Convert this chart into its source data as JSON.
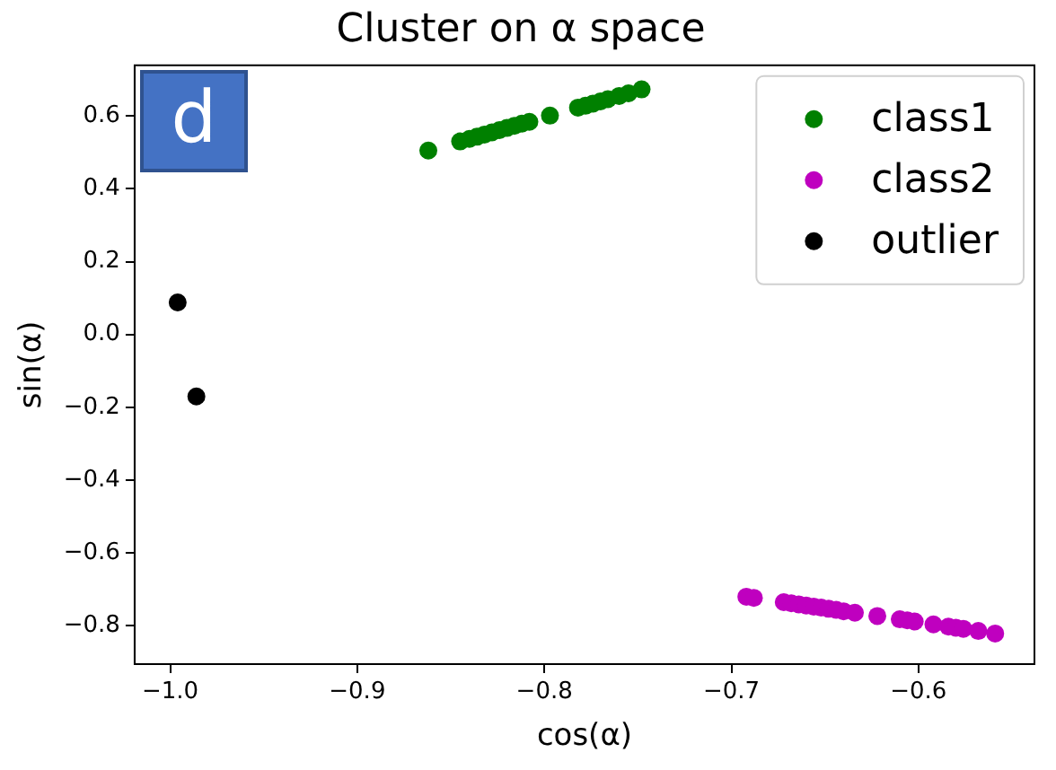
{
  "chart_data": {
    "type": "scatter",
    "title": "Cluster on α space",
    "xlabel": "cos(α)",
    "ylabel": "sin(α)",
    "annotations": [
      "d"
    ],
    "xlim": [
      -1.019,
      -0.538
    ],
    "ylim": [
      -0.905,
      0.739
    ],
    "xticks": [
      {
        "value": -1,
        "label": "−1.0"
      },
      {
        "value": -0.9,
        "label": "−0.9"
      },
      {
        "value": -0.8,
        "label": "−0.8"
      },
      {
        "value": -0.7,
        "label": "−0.7"
      },
      {
        "value": -0.6,
        "label": "−0.6"
      }
    ],
    "yticks": [
      {
        "value": -0.8,
        "label": "−0.8"
      },
      {
        "value": -0.6,
        "label": "−0.6"
      },
      {
        "value": -0.4,
        "label": "−0.4"
      },
      {
        "value": -0.2,
        "label": "−0.2"
      },
      {
        "value": 0,
        "label": "0.0"
      },
      0.2,
      0.4,
      0.6
    ],
    "grid": false,
    "legend": "top right",
    "marker": "circle",
    "series": [
      {
        "name": "class1",
        "color": "#008000",
        "x": [
          -0.862,
          -0.845,
          -0.84,
          -0.836,
          -0.832,
          -0.828,
          -0.824,
          -0.82,
          -0.816,
          -0.812,
          -0.808,
          -0.797,
          -0.782,
          -0.778,
          -0.774,
          -0.77,
          -0.766,
          -0.76,
          -0.755,
          -0.748
        ],
        "values": [
          0.505,
          0.53,
          0.537,
          0.543,
          0.549,
          0.555,
          0.561,
          0.567,
          0.573,
          0.579,
          0.584,
          0.601,
          0.623,
          0.628,
          0.634,
          0.64,
          0.646,
          0.655,
          0.662,
          0.673
        ]
      },
      {
        "name": "class2",
        "color": "#bf00bf",
        "x": [
          -0.692,
          -0.688,
          -0.672,
          -0.668,
          -0.664,
          -0.66,
          -0.656,
          -0.652,
          -0.648,
          -0.644,
          -0.64,
          -0.634,
          -0.622,
          -0.61,
          -0.606,
          -0.602,
          -0.592,
          -0.584,
          -0.58,
          -0.576,
          -0.568,
          -0.559
        ],
        "values": [
          -0.72,
          -0.723,
          -0.735,
          -0.738,
          -0.741,
          -0.744,
          -0.747,
          -0.75,
          -0.753,
          -0.756,
          -0.76,
          -0.764,
          -0.773,
          -0.782,
          -0.785,
          -0.788,
          -0.796,
          -0.802,
          -0.805,
          -0.808,
          -0.814,
          -0.821
        ]
      },
      {
        "name": "outlier",
        "color": "#000000",
        "x": [
          -0.996,
          -0.986
        ],
        "values": [
          0.088,
          -0.17
        ]
      }
    ]
  }
}
